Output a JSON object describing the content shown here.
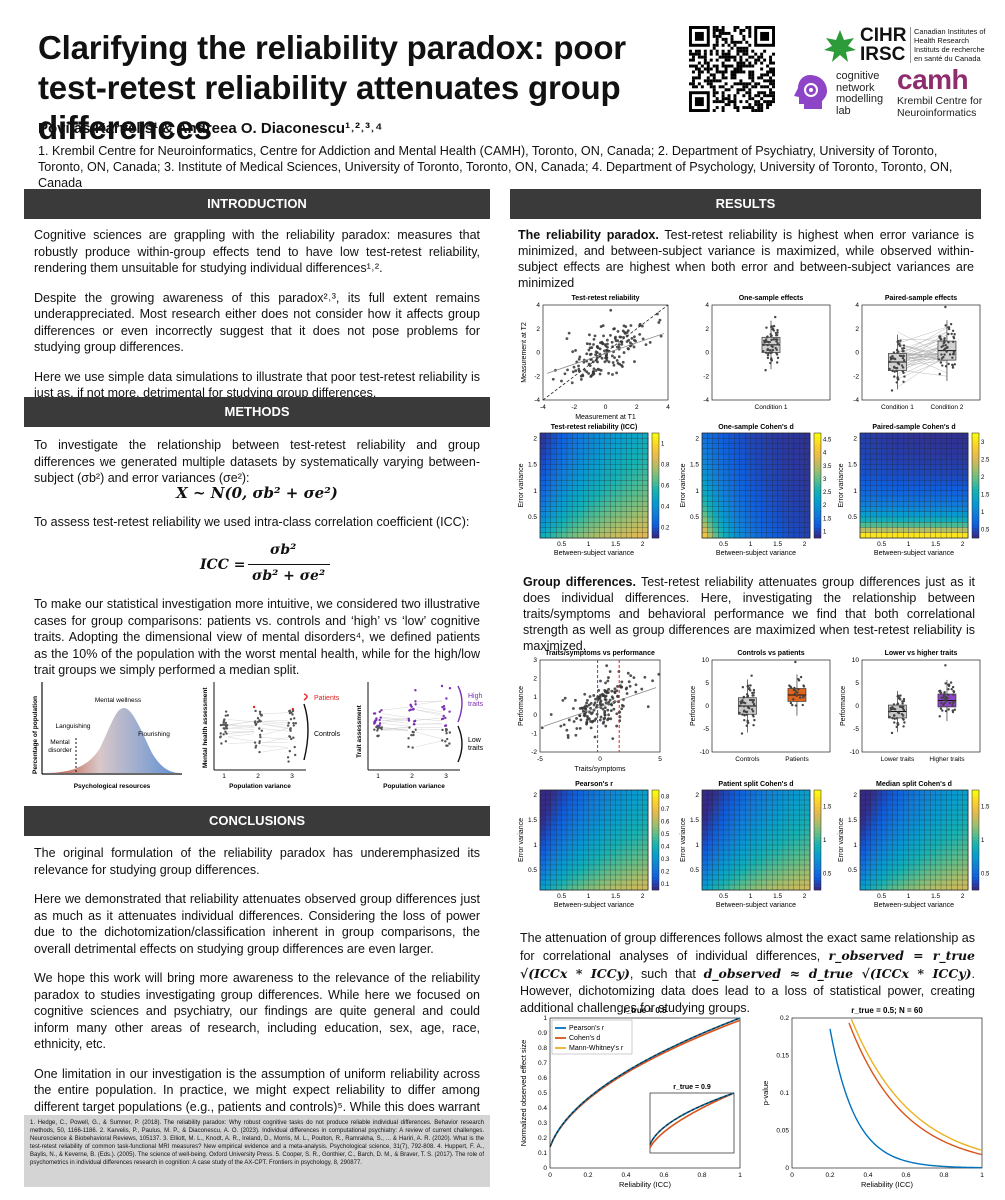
{
  "header": {
    "title": "Clarifying the reliability paradox: poor test-retest reliability attenuates group differences",
    "authors": "Povilas Karvelis¹ & Andreea O. Diaconescu¹˒²˒³˒⁴",
    "affiliations": "1. Krembil Centre for Neuroinformatics, Centre for Addiction and Mental Health (CAMH), Toronto, ON, Canada; 2. Department of Psychiatry, University of Toronto, Toronto, ON, Canada; 3. Institute of Medical Sciences, University of Toronto, Toronto, ON, Canada; 4. Department of Psychology, University of Toronto, Toronto, ON, Canada",
    "logos": {
      "cihr": "CIHR",
      "irsc": "IRSC",
      "cihr_en": "Canadian Institutes of Health Research",
      "cihr_fr": "Instituts de recherche en santé du Canada",
      "cnm_line1": "cognitive",
      "cnm_line2": "network",
      "cnm_line3": "modelling",
      "cnm_line4": "lab",
      "camh": "camh",
      "camh_sub1": "Krembil Centre for",
      "camh_sub2": "Neuroinformatics"
    }
  },
  "sections": {
    "introduction": {
      "heading": "INTRODUCTION",
      "p1": "Cognitive sciences are grappling with the reliability paradox: measures that robustly produce within-group effects tend to have low test-retest reliability, rendering them unsuitable for studying individual differences¹˒².",
      "p2": "Despite the growing awareness of this paradox²˒³, its full extent remains underappreciated. Most research either does not consider how it affects group differences or even incorrectly suggest that it does not pose problems for studying group differences.",
      "p3": "Here we use simple data simulations to illustrate that poor test-retest reliability is just as, if not more, detrimental for studying group differences."
    },
    "methods": {
      "heading": "METHODS",
      "p1": "To investigate the relationship between test-retest reliability and group differences we generated multiple datasets by systematically varying between-subject (σb²) and error variances (σe²):",
      "formula1": "X ~ N(0, σb² + σe²)",
      "p2": "To assess test-retest reliability we used intra-class correlation coefficient (ICC):",
      "icc_lhs": "ICC =",
      "icc_num": "σb²",
      "icc_den": "σb² + σe²",
      "p3": "To make our statistical investigation more intuitive, we considered two illustrative cases for group comparisons: patients vs. controls and ‘high’ vs ‘low’ cognitive traits. Adopting the dimensional view of mental disorders⁴, we defined patients as the 10% of the population with the worst mental health, while for the high/low trait groups we simply performed a median split.",
      "fig": {
        "ylabel1": "Percentage of population",
        "xlabel1": "Psychological resources",
        "wellness": "Mental wellness",
        "languishing": "Languishing",
        "flourishing": "Flourishing",
        "disorder1": "Mental",
        "disorder2": "disorder",
        "ylabel2": "Mental health assessment",
        "xlabel2": "Population variance",
        "patients": "Patients",
        "controls": "Controls",
        "ylabel3": "Trait assessment",
        "xlabel3": "Population variance",
        "high1": "High",
        "high2": "traits",
        "low1": "Low",
        "low2": "traits",
        "ticks": [
          "1",
          "2",
          "3"
        ]
      }
    },
    "conclusions": {
      "heading": "CONCLUSIONS",
      "p1": "The original formulation of the reliability paradox has underemphasized its relevance for studying group differences.",
      "p2": "Here we demonstrated that reliability attenuates observed group differences just as much as it attenuates individual differences. Considering the loss of power due to the dichotomization/classification inherent in group comparisons, the overall detrimental effects on studying group differences are even larger.",
      "p3": "We hope this work will bring more awareness to the relevance of the reliability paradox to studies investigating group differences. While here we focused on cognitive sciences and psychiatry, our findings are quite general and could inform many other areas of research, including education, sex, age, race, ethnicity, etc.",
      "p4": "One limitation in our investigation is the assumption of uniform reliability across the entire population. In practice, we might expect reliability to differ among different target populations (e.g., patients and controls)⁵. While this does warrant a more nuanced approach in assessing the reliability, it does not undermine the general argument that poor reliability attenuates observed group differences."
    },
    "references": "1. Hedge, C., Powell, G., & Sumner, P. (2018). The reliability paradox: Why robust cognitive tasks do not produce reliable individual differences. Behavior research methods, 50, 1166-1186. 2. Karvelis, P., Paulus, M. P., & Diaconescu, A. O. (2023). Individual differences in computational psychiatry: A review of current challenges. Neuroscience & Biobehavioral Reviews, 105137. 3. Elliott, M. L., Knodt, A. R., Ireland, D., Morris, M. L., Poulton, R., Ramrakha, S., ... & Hariri, A. R. (2020). What is the test-retest reliability of common task-functional MRI measures? New empirical evidence and a meta-analysis. Psychological science, 31(7), 792-808. 4. Huppert, F. A., Baylis, N., & Keverne, B. (Eds.). (2005). The science of well-being. Oxford University Press. 5. Cooper, S. R., Gonthier, C., Barch, D. M., & Braver, T. S. (2017). The role of psychometrics in individual differences research in cognition: A case study of the AX-CPT. Frontiers in psychology, 8, 290877.",
    "results": {
      "heading": "RESULTS",
      "paradox_lead": "The reliability paradox.",
      "paradox_text": " Test-retest reliability is highest when error variance is minimized, and between-subject variance is maximized, while observed within-subject effects are highest when both error and between-subject variances are minimized",
      "group_lead": "Group differences.",
      "group_text": " Test-retest reliability attenuates group differences just as it does individual differences. Here, investigating the relationship between traits/symptoms and behavioral performance we find that both correlational strength as well as group differences are maximized when test-retest reliability is maximized.",
      "atten_a": "The attenuation of group differences follows almost the exact same relationship as for correlational analyses of individual differences, ",
      "atten_f1": "r_observed = r_true √(ICCx * ICCy)",
      "atten_b": ", such that ",
      "atten_f2": "d_observed ≈ d_true √(ICCx * ICCy)",
      "atten_c": ". However, dichotomizing data does lead to a loss of statistical power, creating additional challenges for studying groups."
    }
  },
  "chart_data": [
    {
      "type": "scatter",
      "title": "Test-retest reliability",
      "xlabel": "Measurement at T1",
      "ylabel": "Measurement at T2",
      "xlim": [
        -4,
        4
      ],
      "ylim": [
        -4,
        4
      ],
      "xticks": [
        "-4",
        "-2",
        "0",
        "2",
        "4"
      ],
      "yticks": [
        "-4",
        "-2",
        "0",
        "2",
        "4"
      ]
    },
    {
      "type": "box",
      "title": "One-sample effects",
      "categories": [
        "Condition 1"
      ],
      "yticks": [
        "-4",
        "-2",
        "0",
        "2",
        "4"
      ]
    },
    {
      "type": "box",
      "title": "Paired-sample effects",
      "categories": [
        "Condition 1",
        "Condition 2"
      ],
      "yticks": [
        "-4",
        "-2",
        "0",
        "2",
        "4"
      ]
    },
    {
      "type": "heatmap",
      "title": "Test-retest reliability (ICC)",
      "xlabel": "Between-subject variance",
      "ylabel": "Error variance",
      "xticks": [
        "0.5",
        "1",
        "1.5",
        "2"
      ],
      "yticks": [
        "0.5",
        "1",
        "1.5",
        "2"
      ],
      "colorbar": [
        "0.2",
        "0.4",
        "0.6",
        "0.8",
        "1"
      ]
    },
    {
      "type": "heatmap",
      "title": "One-sample Cohen's d",
      "xlabel": "Between-subject variance",
      "ylabel": "Error variance",
      "xticks": [
        "0.5",
        "1",
        "1.5",
        "2"
      ],
      "yticks": [
        "0.5",
        "1",
        "1.5",
        "2"
      ],
      "colorbar": [
        "1",
        "1.5",
        "2",
        "2.5",
        "3",
        "3.5",
        "4",
        "4.5"
      ]
    },
    {
      "type": "heatmap",
      "title": "Paired-sample Cohen's d",
      "xlabel": "Between-subject variance",
      "ylabel": "Error variance",
      "xticks": [
        "0.5",
        "1",
        "1.5",
        "2"
      ],
      "yticks": [
        "0.5",
        "1",
        "1.5",
        "2"
      ],
      "colorbar": [
        "0.5",
        "1",
        "1.5",
        "2",
        "2.5",
        "3"
      ]
    },
    {
      "type": "scatter",
      "title": "Traits/symptoms vs performance",
      "xlabel": "Traits/symptoms",
      "ylabel": "Performance",
      "xticks": [
        "-5",
        "0",
        "5"
      ],
      "yticks": [
        "-2",
        "-1",
        "0",
        "1",
        "2",
        "3"
      ]
    },
    {
      "type": "box",
      "title": "Controls vs patients",
      "ylabel": "Performance",
      "categories": [
        "Controls",
        "Patients"
      ],
      "yticks": [
        "-10",
        "-5",
        "0",
        "5",
        "10"
      ]
    },
    {
      "type": "box",
      "title": "Lower vs higher traits",
      "ylabel": "Performance",
      "categories": [
        "Lower traits",
        "Higher traits"
      ],
      "yticks": [
        "-10",
        "-5",
        "0",
        "5",
        "10"
      ]
    },
    {
      "type": "heatmap",
      "title": "Pearson's r",
      "xlabel": "Between-subject variance",
      "ylabel": "Error variance",
      "xticks": [
        "0.5",
        "1",
        "1.5",
        "2"
      ],
      "yticks": [
        "0.5",
        "1",
        "1.5",
        "2"
      ],
      "colorbar": [
        "0.1",
        "0.2",
        "0.3",
        "0.4",
        "0.5",
        "0.6",
        "0.7",
        "0.8"
      ]
    },
    {
      "type": "heatmap",
      "title": "Patient split Cohen's d",
      "xlabel": "Between-subject variance",
      "ylabel": "Error variance",
      "xticks": [
        "0.5",
        "1",
        "1.5",
        "2"
      ],
      "yticks": [
        "0.5",
        "1",
        "1.5",
        "2"
      ],
      "colorbar": [
        "0.5",
        "1",
        "1.5"
      ]
    },
    {
      "type": "heatmap",
      "title": "Median split Cohen's d",
      "xlabel": "Between-subject variance",
      "ylabel": "Error variance",
      "xticks": [
        "0.5",
        "1",
        "1.5",
        "2"
      ],
      "yticks": [
        "0.5",
        "1",
        "1.5",
        "2"
      ],
      "colorbar": [
        "0.5",
        "1",
        "1.5"
      ]
    },
    {
      "type": "line",
      "title": "r_true = 0.5",
      "inset_title": "r_true = 0.9",
      "xlabel": "Reliability (ICC)",
      "ylabel": "Normalized observed effect size",
      "xlim": [
        0,
        1
      ],
      "ylim": [
        0,
        1
      ],
      "xticks": [
        "0",
        "0.2",
        "0.4",
        "0.6",
        "0.8",
        "1"
      ],
      "yticks": [
        "0",
        "0.1",
        "0.2",
        "0.3",
        "0.4",
        "0.5",
        "0.6",
        "0.7",
        "0.8",
        "0.9",
        "1"
      ],
      "series": [
        {
          "name": "Pearson's r",
          "color": "#0072BD"
        },
        {
          "name": "Cohen's d",
          "color": "#D95319"
        },
        {
          "name": "Mann-Whitney's r",
          "color": "#EDB120"
        }
      ]
    },
    {
      "type": "line",
      "title": "r_true = 0.5; N = 60",
      "xlabel": "Reliability (ICC)",
      "ylabel": "p-value",
      "xlim": [
        0,
        1
      ],
      "ylim": [
        0,
        0.2
      ],
      "xticks": [
        "0",
        "0.2",
        "0.4",
        "0.6",
        "0.8",
        "1"
      ],
      "yticks": [
        "0",
        "0.05",
        "0.1",
        "0.15",
        "0.2"
      ]
    }
  ]
}
